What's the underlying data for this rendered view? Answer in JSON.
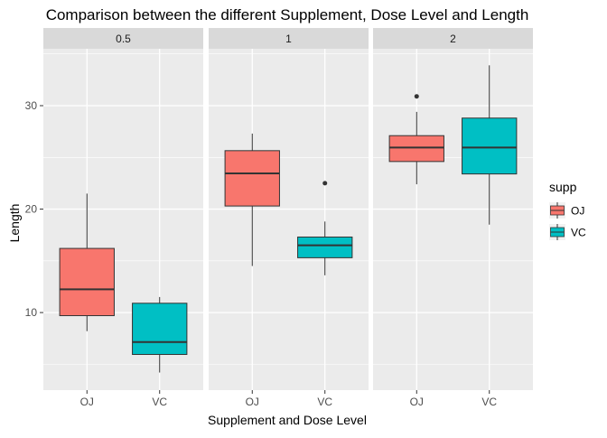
{
  "chart_data": {
    "type": "boxplot",
    "title": "Comparison between the different Supplement, Dose Level and Length",
    "xlabel": "Supplement and Dose Level",
    "ylabel": "Length",
    "ylim": [
      2.5,
      35.5
    ],
    "yticks": [
      10,
      20,
      30
    ],
    "categories": [
      "OJ",
      "VC"
    ],
    "panels": [
      {
        "label": "0.5",
        "boxes": [
          {
            "supp": "OJ",
            "min": 8.2,
            "q1": 9.7,
            "median": 12.25,
            "q3": 16.2,
            "max": 21.5,
            "outliers": []
          },
          {
            "supp": "VC",
            "min": 4.2,
            "q1": 5.95,
            "median": 7.15,
            "q3": 10.9,
            "max": 11.5,
            "outliers": []
          }
        ]
      },
      {
        "label": "1",
        "boxes": [
          {
            "supp": "OJ",
            "min": 14.5,
            "q1": 20.3,
            "median": 23.45,
            "q3": 25.65,
            "max": 27.3,
            "outliers": []
          },
          {
            "supp": "VC",
            "min": 13.6,
            "q1": 15.3,
            "median": 16.5,
            "q3": 17.3,
            "max": 18.8,
            "outliers": [
              22.5
            ]
          }
        ]
      },
      {
        "label": "2",
        "boxes": [
          {
            "supp": "OJ",
            "min": 22.4,
            "q1": 24.6,
            "median": 25.95,
            "q3": 27.1,
            "max": 29.4,
            "outliers": [
              30.9
            ]
          },
          {
            "supp": "VC",
            "min": 18.5,
            "q1": 23.4,
            "median": 25.95,
            "q3": 28.8,
            "max": 33.9,
            "outliers": []
          }
        ]
      }
    ],
    "legend": {
      "title": "supp",
      "position": "right",
      "items": [
        {
          "label": "OJ",
          "color": "#F8766D"
        },
        {
          "label": "VC",
          "color": "#00BFC4"
        }
      ]
    },
    "colors": {
      "panel_bg": "#EBEBEB",
      "strip_bg": "#D9D9D9",
      "grid": "#FFFFFF",
      "axis_text": "#4D4D4D",
      "box_line": "#333333"
    }
  }
}
